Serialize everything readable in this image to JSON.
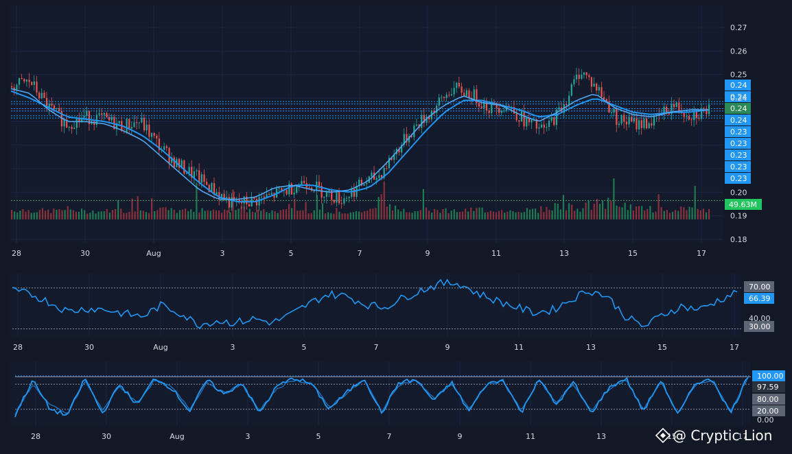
{
  "chart_data": [
    {
      "type": "candlestick",
      "panel": "price",
      "x_labels": [
        "28",
        "30",
        "Aug",
        "3",
        "5",
        "7",
        "9",
        "11",
        "13",
        "15",
        "17"
      ],
      "y_ticks": [
        "0.27",
        "0.26",
        "0.25",
        "0.24",
        "0.20",
        "0.19",
        "0.18"
      ],
      "ylim": [
        0.18,
        0.27
      ],
      "price_path": [
        0.245,
        0.247,
        0.236,
        0.229,
        0.232,
        0.231,
        0.228,
        0.23,
        0.22,
        0.212,
        0.207,
        0.201,
        0.195,
        0.196,
        0.198,
        0.201,
        0.205,
        0.2,
        0.197,
        0.203,
        0.207,
        0.218,
        0.228,
        0.235,
        0.244,
        0.242,
        0.236,
        0.237,
        0.23,
        0.226,
        0.236,
        0.252,
        0.243,
        0.231,
        0.229,
        0.23,
        0.237,
        0.233,
        0.235
      ],
      "ma_fast": [
        0.244,
        0.242,
        0.235,
        0.23,
        0.23,
        0.229,
        0.226,
        0.222,
        0.215,
        0.208,
        0.201,
        0.197,
        0.197,
        0.198,
        0.202,
        0.203,
        0.201,
        0.2,
        0.201,
        0.205,
        0.213,
        0.222,
        0.231,
        0.237,
        0.241,
        0.238,
        0.237,
        0.233,
        0.23,
        0.234,
        0.239,
        0.242,
        0.236,
        0.233,
        0.232,
        0.234,
        0.235,
        0.235
      ],
      "ma_slow": [
        0.243,
        0.24,
        0.236,
        0.232,
        0.231,
        0.23,
        0.228,
        0.224,
        0.218,
        0.211,
        0.204,
        0.198,
        0.196,
        0.196,
        0.199,
        0.203,
        0.203,
        0.201,
        0.2,
        0.202,
        0.208,
        0.217,
        0.226,
        0.234,
        0.239,
        0.239,
        0.237,
        0.235,
        0.232,
        0.233,
        0.237,
        0.24,
        0.237,
        0.234,
        0.233,
        0.234,
        0.234,
        0.235
      ],
      "volume_profile": [
        0.45,
        0.4,
        0.35,
        0.5,
        0.3,
        0.35,
        0.4,
        0.3,
        0.45,
        0.35,
        0.5,
        0.4,
        0.55,
        0.35,
        0.3,
        0.4,
        0.35,
        0.3,
        0.25,
        0.4,
        0.6,
        0.45,
        0.5,
        0.4,
        0.35,
        0.5,
        0.35,
        0.4,
        0.45,
        0.8,
        0.6,
        0.9,
        1.0,
        0.6,
        0.5,
        0.4,
        0.45,
        0.35
      ],
      "horizontal_levels": [
        0.2385,
        0.2375,
        0.2355,
        0.2345,
        0.2325,
        0.2315
      ],
      "level_labels": [
        "0.24",
        "0.24",
        "0.24",
        "0.24",
        "0.23",
        "0.23",
        "0.23",
        "0.23",
        "0.23",
        "0.23"
      ],
      "current_price_label": "0.24",
      "volume_label": "49.63M",
      "colors": {
        "up": "#26a69a",
        "down": "#ef5350",
        "ma": "#2196f3",
        "level": "#2196f3",
        "volume_up": "#1f7a52",
        "volume_down": "#8b2f3a"
      }
    },
    {
      "type": "line",
      "panel": "rsi",
      "x_labels": [
        "28",
        "30",
        "Aug",
        "3",
        "5",
        "7",
        "9",
        "11",
        "13",
        "15",
        "17"
      ],
      "ylim": [
        25,
        80
      ],
      "levels": [
        70,
        30
      ],
      "level_labels": [
        "70.00",
        "30.00"
      ],
      "mid_tick": "40.00",
      "current_label": "66.39",
      "current_value": 66.39,
      "values": [
        67,
        64,
        56,
        47,
        50,
        49,
        45,
        42,
        53,
        46,
        34,
        38,
        36,
        40,
        36,
        44,
        55,
        64,
        62,
        54,
        51,
        60,
        68,
        74,
        75,
        65,
        58,
        52,
        46,
        48,
        58,
        68,
        62,
        42,
        32,
        44,
        52,
        49,
        58,
        66
      ],
      "colors": {
        "line": "#2196f3"
      }
    },
    {
      "type": "line",
      "panel": "stochastic",
      "x_labels": [
        "28",
        "30",
        "Aug",
        "3",
        "5",
        "7",
        "9",
        "11",
        "13",
        "15",
        "17"
      ],
      "ylim": [
        -5,
        105
      ],
      "levels": [
        80,
        20
      ],
      "level_labels": [
        "80.00",
        "20.00",
        "0.00"
      ],
      "current_labels": [
        "100.00",
        "97.59"
      ],
      "k_values": [
        5,
        90,
        20,
        5,
        95,
        10,
        80,
        30,
        95,
        70,
        15,
        90,
        55,
        85,
        10,
        75,
        95,
        80,
        20,
        60,
        95,
        10,
        85,
        90,
        40,
        85,
        15,
        80,
        90,
        10,
        95,
        30,
        85,
        10,
        70,
        95,
        15,
        90,
        5,
        85,
        90,
        10,
        100
      ],
      "d_values": [
        8,
        80,
        30,
        8,
        88,
        18,
        75,
        35,
        90,
        72,
        20,
        85,
        58,
        80,
        15,
        70,
        90,
        82,
        25,
        58,
        90,
        15,
        80,
        88,
        45,
        82,
        20,
        78,
        88,
        15,
        90,
        35,
        80,
        15,
        68,
        90,
        20,
        85,
        10,
        80,
        88,
        15,
        97.59
      ],
      "colors": {
        "k": "#2196f3",
        "d": "#2196f3"
      }
    }
  ],
  "watermark": {
    "text": "@ Cryptic Lion"
  }
}
